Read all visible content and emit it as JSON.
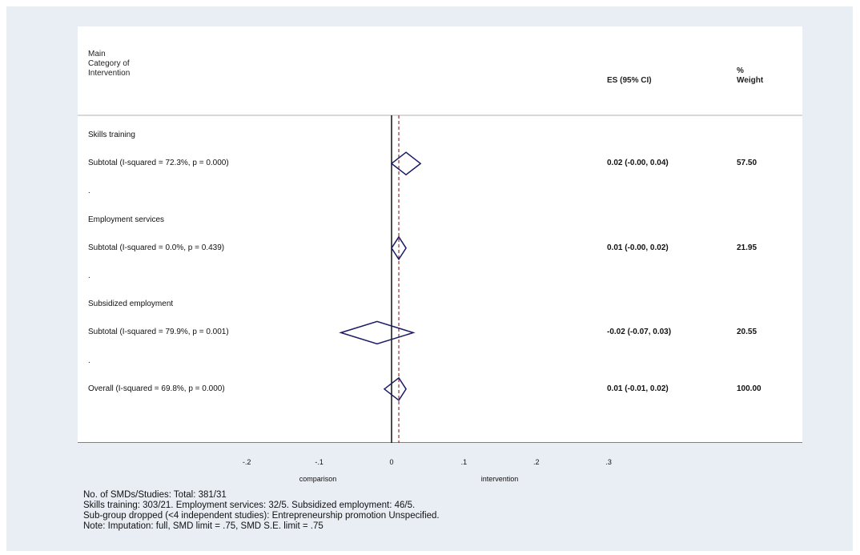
{
  "header": {
    "category_lines": [
      "Main",
      "Category of",
      "Intervention"
    ],
    "es_label": "ES (95% CI)",
    "weight_lines": [
      "%",
      "Weight"
    ]
  },
  "chart_data": {
    "type": "forest",
    "xlim": [
      -0.2,
      0.3
    ],
    "ticks": [
      -0.2,
      -0.1,
      0,
      0.1,
      0.2,
      0.3
    ],
    "tick_labels": [
      "-.2",
      "-.1",
      "0",
      ".1",
      ".2",
      ".3"
    ],
    "null_line": 0,
    "overall_effect_line": 0.01,
    "left_label": "comparison",
    "right_label": "intervention",
    "rows": [
      {
        "kind": "group",
        "label": "Skills training"
      },
      {
        "kind": "subtotal",
        "label": "Subtotal  (I-squared = 72.3%, p = 0.000)",
        "es": 0.02,
        "lo": -0.0,
        "hi": 0.04,
        "es_text": "0.02 (-0.00, 0.04)",
        "weight": "57.50"
      },
      {
        "kind": "spacer",
        "label": "."
      },
      {
        "kind": "group",
        "label": "Employment services"
      },
      {
        "kind": "subtotal",
        "label": "Subtotal  (I-squared = 0.0%, p = 0.439)",
        "es": 0.01,
        "lo": -0.0,
        "hi": 0.02,
        "es_text": "0.01 (-0.00, 0.02)",
        "weight": "21.95"
      },
      {
        "kind": "spacer",
        "label": "."
      },
      {
        "kind": "group",
        "label": "Subsidized employment"
      },
      {
        "kind": "subtotal",
        "label": "Subtotal  (I-squared = 79.9%, p = 0.001)",
        "es": -0.02,
        "lo": -0.07,
        "hi": 0.03,
        "es_text": "-0.02 (-0.07, 0.03)",
        "weight": "20.55"
      },
      {
        "kind": "spacer",
        "label": "."
      },
      {
        "kind": "overall",
        "label": "Overall  (I-squared = 69.8%, p = 0.000)",
        "es": 0.01,
        "lo": -0.01,
        "hi": 0.02,
        "es_text": "0.01 (-0.01, 0.02)",
        "weight": "100.00"
      }
    ]
  },
  "notes": [
    "No. of SMDs/Studies: Total: 381/31",
    "Skills training: 303/21. Employment services: 32/5. Subsidized employment: 46/5.",
    "Sub-group dropped (<4 independent studies):   Entrepreneurship promotion Unspecified.",
    "Note: Imputation: full, SMD limit = .75, SMD S.E. limit = .75"
  ],
  "colors": {
    "diamond": "#1a1a66",
    "null_line": "#000000",
    "effect_line": "#8b2020",
    "background": "#e9eef4"
  }
}
